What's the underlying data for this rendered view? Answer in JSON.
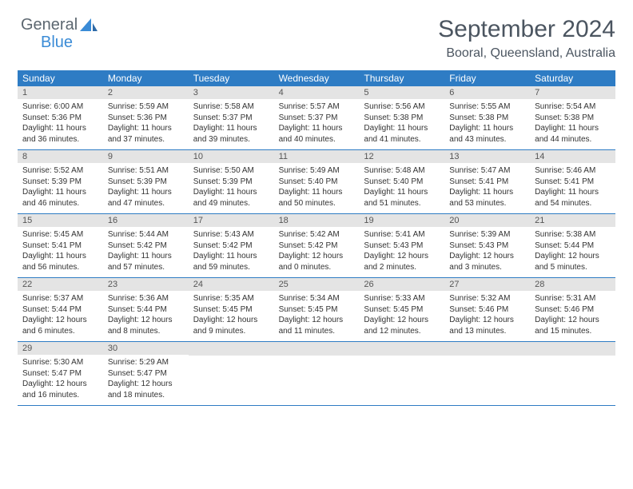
{
  "logo": {
    "word1": "General",
    "word2": "Blue"
  },
  "title": "September 2024",
  "location": "Booral, Queensland, Australia",
  "colors": {
    "header_bg": "#2e7cc4",
    "header_text": "#ffffff",
    "daynum_bg": "#e4e4e4",
    "text": "#333333",
    "title_color": "#4b5560",
    "divider": "#2e7cc4",
    "logo_gray": "#5c6770",
    "logo_blue": "#3a8bd6"
  },
  "day_names": [
    "Sunday",
    "Monday",
    "Tuesday",
    "Wednesday",
    "Thursday",
    "Friday",
    "Saturday"
  ],
  "weeks": [
    [
      {
        "n": "1",
        "sr": "6:00 AM",
        "ss": "5:36 PM",
        "dl": "11 hours and 36 minutes."
      },
      {
        "n": "2",
        "sr": "5:59 AM",
        "ss": "5:36 PM",
        "dl": "11 hours and 37 minutes."
      },
      {
        "n": "3",
        "sr": "5:58 AM",
        "ss": "5:37 PM",
        "dl": "11 hours and 39 minutes."
      },
      {
        "n": "4",
        "sr": "5:57 AM",
        "ss": "5:37 PM",
        "dl": "11 hours and 40 minutes."
      },
      {
        "n": "5",
        "sr": "5:56 AM",
        "ss": "5:38 PM",
        "dl": "11 hours and 41 minutes."
      },
      {
        "n": "6",
        "sr": "5:55 AM",
        "ss": "5:38 PM",
        "dl": "11 hours and 43 minutes."
      },
      {
        "n": "7",
        "sr": "5:54 AM",
        "ss": "5:38 PM",
        "dl": "11 hours and 44 minutes."
      }
    ],
    [
      {
        "n": "8",
        "sr": "5:52 AM",
        "ss": "5:39 PM",
        "dl": "11 hours and 46 minutes."
      },
      {
        "n": "9",
        "sr": "5:51 AM",
        "ss": "5:39 PM",
        "dl": "11 hours and 47 minutes."
      },
      {
        "n": "10",
        "sr": "5:50 AM",
        "ss": "5:39 PM",
        "dl": "11 hours and 49 minutes."
      },
      {
        "n": "11",
        "sr": "5:49 AM",
        "ss": "5:40 PM",
        "dl": "11 hours and 50 minutes."
      },
      {
        "n": "12",
        "sr": "5:48 AM",
        "ss": "5:40 PM",
        "dl": "11 hours and 51 minutes."
      },
      {
        "n": "13",
        "sr": "5:47 AM",
        "ss": "5:41 PM",
        "dl": "11 hours and 53 minutes."
      },
      {
        "n": "14",
        "sr": "5:46 AM",
        "ss": "5:41 PM",
        "dl": "11 hours and 54 minutes."
      }
    ],
    [
      {
        "n": "15",
        "sr": "5:45 AM",
        "ss": "5:41 PM",
        "dl": "11 hours and 56 minutes."
      },
      {
        "n": "16",
        "sr": "5:44 AM",
        "ss": "5:42 PM",
        "dl": "11 hours and 57 minutes."
      },
      {
        "n": "17",
        "sr": "5:43 AM",
        "ss": "5:42 PM",
        "dl": "11 hours and 59 minutes."
      },
      {
        "n": "18",
        "sr": "5:42 AM",
        "ss": "5:42 PM",
        "dl": "12 hours and 0 minutes."
      },
      {
        "n": "19",
        "sr": "5:41 AM",
        "ss": "5:43 PM",
        "dl": "12 hours and 2 minutes."
      },
      {
        "n": "20",
        "sr": "5:39 AM",
        "ss": "5:43 PM",
        "dl": "12 hours and 3 minutes."
      },
      {
        "n": "21",
        "sr": "5:38 AM",
        "ss": "5:44 PM",
        "dl": "12 hours and 5 minutes."
      }
    ],
    [
      {
        "n": "22",
        "sr": "5:37 AM",
        "ss": "5:44 PM",
        "dl": "12 hours and 6 minutes."
      },
      {
        "n": "23",
        "sr": "5:36 AM",
        "ss": "5:44 PM",
        "dl": "12 hours and 8 minutes."
      },
      {
        "n": "24",
        "sr": "5:35 AM",
        "ss": "5:45 PM",
        "dl": "12 hours and 9 minutes."
      },
      {
        "n": "25",
        "sr": "5:34 AM",
        "ss": "5:45 PM",
        "dl": "12 hours and 11 minutes."
      },
      {
        "n": "26",
        "sr": "5:33 AM",
        "ss": "5:45 PM",
        "dl": "12 hours and 12 minutes."
      },
      {
        "n": "27",
        "sr": "5:32 AM",
        "ss": "5:46 PM",
        "dl": "12 hours and 13 minutes."
      },
      {
        "n": "28",
        "sr": "5:31 AM",
        "ss": "5:46 PM",
        "dl": "12 hours and 15 minutes."
      }
    ],
    [
      {
        "n": "29",
        "sr": "5:30 AM",
        "ss": "5:47 PM",
        "dl": "12 hours and 16 minutes."
      },
      {
        "n": "30",
        "sr": "5:29 AM",
        "ss": "5:47 PM",
        "dl": "12 hours and 18 minutes."
      },
      null,
      null,
      null,
      null,
      null
    ]
  ],
  "labels": {
    "sunrise": "Sunrise: ",
    "sunset": "Sunset: ",
    "daylight": "Daylight: "
  }
}
